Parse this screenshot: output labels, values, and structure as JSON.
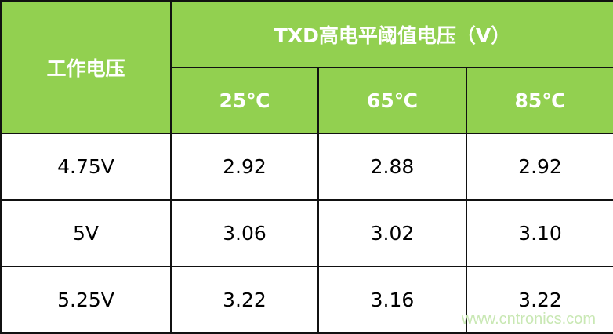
{
  "chart_data": {
    "type": "table",
    "header": {
      "row_label": "工作电压",
      "group_label": "TXD高电平阈值电压（V）",
      "columns": [
        "25℃",
        "65℃",
        "85℃"
      ]
    },
    "rows": [
      {
        "label": "4.75V",
        "values": [
          "2.92",
          "2.88",
          "2.92"
        ]
      },
      {
        "label": "5V",
        "values": [
          "3.06",
          "3.02",
          "3.10"
        ]
      },
      {
        "label": "5.25V",
        "values": [
          "3.22",
          "3.16",
          "3.22"
        ]
      }
    ]
  },
  "colors": {
    "header_bg": "#92D050",
    "header_text": "#FFFFFF"
  },
  "watermark": "www.cntronics.com"
}
